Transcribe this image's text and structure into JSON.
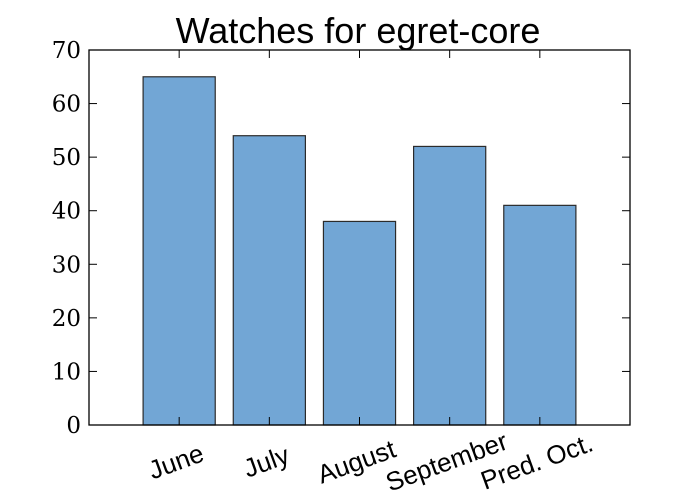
{
  "chart_data": {
    "type": "bar",
    "title": "Watches for egret-core",
    "xlabel": "",
    "ylabel": "",
    "categories": [
      "June",
      "July",
      "August",
      "September",
      "Pred. Oct."
    ],
    "values": [
      65,
      54,
      38,
      52,
      41
    ],
    "ylim": [
      0,
      70
    ],
    "yticks": [
      0,
      10,
      20,
      30,
      40,
      50,
      60,
      70
    ],
    "ytick_labels": [
      "0",
      "10",
      "20",
      "30",
      "40",
      "50",
      "60",
      "70"
    ],
    "xtick_rotation_deg": -20,
    "grid": false,
    "legend": "none",
    "colors": {
      "bar_fill": "#72a6d5",
      "bar_edge": "#2b2b2b"
    }
  }
}
